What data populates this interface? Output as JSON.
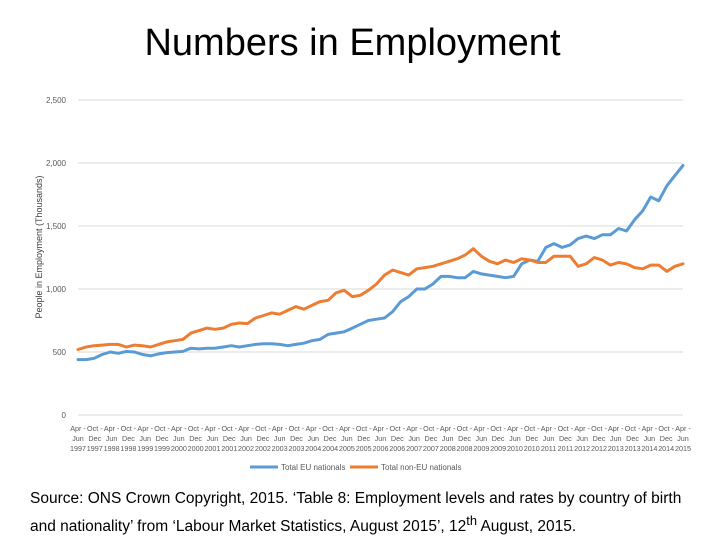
{
  "slide": {
    "title": "Numbers in Employment",
    "source_part1": "Source: ONS Crown Copyright, 2015. ‘Table 8: Employment levels and rates by country of birth and nationality’ from ‘Labour Market Statistics, August 2015’, 12",
    "source_sup": "th",
    "source_part2": " August, 2015."
  },
  "chart_data": {
    "type": "line",
    "title": "",
    "ylabel": "People in Employment (Thousands)",
    "xlabel": "",
    "ylim": [
      0,
      2500
    ],
    "yticks": [
      0,
      500,
      1000,
      1500,
      2000,
      2500
    ],
    "ytick_labels": [
      "0",
      "500",
      "1,000",
      "1,500",
      "2,000",
      "2,500"
    ],
    "grid": true,
    "legend": "bottom",
    "x_labels": [
      [
        "Apr -",
        "Jun",
        "1997"
      ],
      [
        "Oct -",
        "Dec",
        "1997"
      ],
      [
        "Apr -",
        "Jun",
        "1998"
      ],
      [
        "Oct -",
        "Dec",
        "1998"
      ],
      [
        "Apr -",
        "Jun",
        "1999"
      ],
      [
        "Oct -",
        "Dec",
        "1999"
      ],
      [
        "Apr -",
        "Jun",
        "2000"
      ],
      [
        "Oct -",
        "Dec",
        "2000"
      ],
      [
        "Apr -",
        "Jun",
        "2001"
      ],
      [
        "Oct -",
        "Dec",
        "2001"
      ],
      [
        "Apr -",
        "Jun",
        "2002"
      ],
      [
        "Oct -",
        "Dec",
        "2002"
      ],
      [
        "Apr -",
        "Jun",
        "2003"
      ],
      [
        "Oct -",
        "Dec",
        "2003"
      ],
      [
        "Apr -",
        "Jun",
        "2004"
      ],
      [
        "Oct -",
        "Dec",
        "2004"
      ],
      [
        "Apr -",
        "Jun",
        "2005"
      ],
      [
        "Oct -",
        "Dec",
        "2005"
      ],
      [
        "Apr -",
        "Jun",
        "2006"
      ],
      [
        "Oct -",
        "Dec",
        "2006"
      ],
      [
        "Apr -",
        "Jun",
        "2007"
      ],
      [
        "Oct -",
        "Dec",
        "2007"
      ],
      [
        "Apr -",
        "Jun",
        "2008"
      ],
      [
        "Oct -",
        "Dec",
        "2008"
      ],
      [
        "Apr -",
        "Jun",
        "2009"
      ],
      [
        "Oct -",
        "Dec",
        "2009"
      ],
      [
        "Apr -",
        "Jun",
        "2010"
      ],
      [
        "Oct -",
        "Dec",
        "2010"
      ],
      [
        "Apr -",
        "Jun",
        "2011"
      ],
      [
        "Oct -",
        "Dec",
        "2011"
      ],
      [
        "Apr -",
        "Jun",
        "2012"
      ],
      [
        "Oct -",
        "Dec",
        "2012"
      ],
      [
        "Apr -",
        "Jun",
        "2013"
      ],
      [
        "Oct -",
        "Dec",
        "2013"
      ],
      [
        "Apr -",
        "Jun",
        "2014"
      ],
      [
        "Oct -",
        "Dec",
        "2014"
      ],
      [
        "Apr -",
        "Jun",
        "2015"
      ]
    ],
    "series": [
      {
        "name": "Total EU nationals",
        "color": "#5b9bd5",
        "values": [
          440,
          440,
          450,
          480,
          500,
          490,
          505,
          500,
          480,
          470,
          485,
          495,
          500,
          505,
          530,
          525,
          530,
          530,
          540,
          550,
          540,
          550,
          560,
          565,
          565,
          560,
          550,
          560,
          570,
          590,
          600,
          640,
          650,
          660,
          690,
          720,
          750,
          760,
          770,
          820,
          900,
          940,
          1000,
          1000,
          1040,
          1100,
          1100,
          1090,
          1090,
          1140,
          1120,
          1110,
          1100,
          1090,
          1100,
          1200,
          1230,
          1220,
          1330,
          1360,
          1330,
          1350,
          1400,
          1420,
          1400,
          1430,
          1430,
          1480,
          1460,
          1550,
          1620,
          1730,
          1700,
          1820,
          1900,
          1980
        ]
      },
      {
        "name": "Total non-EU nationals",
        "color": "#ed7d31",
        "values": [
          520,
          540,
          550,
          555,
          560,
          560,
          540,
          555,
          550,
          540,
          560,
          580,
          590,
          600,
          650,
          670,
          690,
          680,
          690,
          720,
          730,
          725,
          770,
          790,
          810,
          800,
          830,
          860,
          840,
          870,
          900,
          910,
          970,
          990,
          940,
          950,
          990,
          1040,
          1110,
          1150,
          1130,
          1110,
          1160,
          1170,
          1180,
          1200,
          1220,
          1240,
          1270,
          1320,
          1260,
          1220,
          1200,
          1230,
          1210,
          1240,
          1230,
          1210,
          1210,
          1260,
          1260,
          1260,
          1180,
          1200,
          1250,
          1230,
          1190,
          1210,
          1200,
          1170,
          1160,
          1190,
          1190,
          1140,
          1180,
          1200
        ]
      }
    ]
  }
}
